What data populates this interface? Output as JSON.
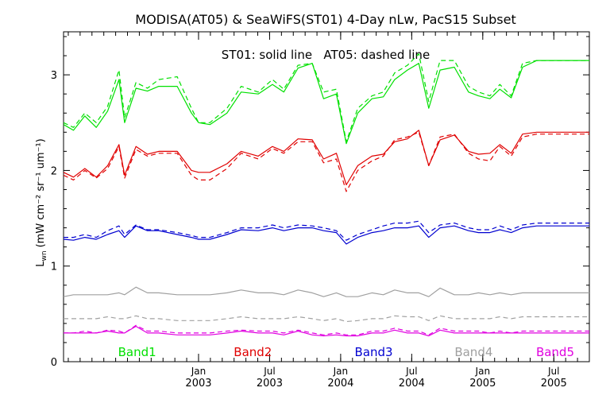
{
  "chart_data": {
    "type": "line",
    "title": "MODISA(AT05) & SeaWiFS(ST01) 4-Day nLw, PacS15 Subset",
    "annotation": "ST01: solid line   AT05: dashed line",
    "ylabel_main": "L",
    "ylabel_sub": "wn",
    "ylabel_units": "(mW cm⁻² sr⁻¹ um⁻¹)",
    "ylim": [
      0,
      3.45
    ],
    "yticks": [
      "0",
      "1",
      "2",
      "3"
    ],
    "xlim": [
      2002.05,
      2005.75
    ],
    "xticks": [
      {
        "x": 2003.0,
        "top": "Jan",
        "bottom": "2003"
      },
      {
        "x": 2003.5,
        "top": "Jul",
        "bottom": "2003"
      },
      {
        "x": 2004.0,
        "top": "Jan",
        "bottom": "2004"
      },
      {
        "x": 2004.5,
        "top": "Jul",
        "bottom": "2004"
      },
      {
        "x": 2005.0,
        "top": "Jan",
        "bottom": "2005"
      },
      {
        "x": 2005.5,
        "top": "Jul",
        "bottom": "2005"
      }
    ],
    "x": [
      2002.05,
      2002.12,
      2002.2,
      2002.28,
      2002.36,
      2002.44,
      2002.48,
      2002.56,
      2002.64,
      2002.72,
      2002.85,
      2002.95,
      2003.0,
      2003.08,
      2003.2,
      2003.3,
      2003.42,
      2003.52,
      2003.6,
      2003.7,
      2003.8,
      2003.88,
      2003.97,
      2004.04,
      2004.12,
      2004.22,
      2004.3,
      2004.38,
      2004.47,
      2004.55,
      2004.62,
      2004.7,
      2004.8,
      2004.9,
      2004.97,
      2005.05,
      2005.12,
      2005.2,
      2005.28,
      2005.38,
      2005.47,
      2005.55,
      2005.63,
      2005.72,
      2005.75
    ],
    "band_labels": [
      {
        "name": "Band1",
        "color": "#00e000"
      },
      {
        "name": "Band2",
        "color": "#e00000"
      },
      {
        "name": "Band3",
        "color": "#0000d0"
      },
      {
        "name": "Band4",
        "color": "#a0a0a0"
      },
      {
        "name": "Band5",
        "color": "#e000e0"
      }
    ],
    "series": [
      {
        "band": 1,
        "sensor": "ST01",
        "style": "solid",
        "color": "#00e000",
        "values": [
          2.48,
          2.42,
          2.57,
          2.45,
          2.62,
          2.95,
          2.5,
          2.86,
          2.83,
          2.88,
          2.88,
          2.6,
          2.5,
          2.48,
          2.6,
          2.82,
          2.8,
          2.9,
          2.82,
          3.07,
          3.12,
          2.75,
          2.8,
          2.28,
          2.6,
          2.75,
          2.77,
          2.95,
          3.05,
          3.12,
          2.65,
          3.05,
          3.08,
          2.82,
          2.78,
          2.75,
          2.85,
          2.76,
          3.08,
          3.15,
          3.15,
          3.15,
          3.15,
          3.15,
          3.15
        ]
      },
      {
        "band": 1,
        "sensor": "AT05",
        "style": "dashed",
        "color": "#00e000",
        "values": [
          2.5,
          2.45,
          2.6,
          2.5,
          2.67,
          3.05,
          2.55,
          2.92,
          2.86,
          2.95,
          2.98,
          2.65,
          2.5,
          2.5,
          2.65,
          2.88,
          2.82,
          2.95,
          2.85,
          3.1,
          3.12,
          2.82,
          2.85,
          2.3,
          2.65,
          2.78,
          2.82,
          3.02,
          3.1,
          3.22,
          2.72,
          3.15,
          3.15,
          2.88,
          2.82,
          2.78,
          2.9,
          2.78,
          3.12,
          3.15,
          3.15,
          3.15,
          3.15,
          3.15,
          3.15
        ]
      },
      {
        "band": 2,
        "sensor": "ST01",
        "style": "solid",
        "color": "#e00000",
        "values": [
          1.98,
          1.93,
          2.02,
          1.93,
          2.05,
          2.27,
          1.95,
          2.25,
          2.17,
          2.2,
          2.2,
          2.0,
          1.98,
          1.98,
          2.07,
          2.2,
          2.15,
          2.25,
          2.2,
          2.33,
          2.32,
          2.12,
          2.18,
          1.85,
          2.05,
          2.15,
          2.17,
          2.3,
          2.33,
          2.42,
          2.05,
          2.32,
          2.37,
          2.2,
          2.17,
          2.18,
          2.27,
          2.18,
          2.38,
          2.4,
          2.4,
          2.4,
          2.4,
          2.4,
          2.4
        ]
      },
      {
        "band": 2,
        "sensor": "AT05",
        "style": "dashed",
        "color": "#e00000",
        "values": [
          1.95,
          1.9,
          2.0,
          1.92,
          2.02,
          2.25,
          1.92,
          2.22,
          2.15,
          2.18,
          2.18,
          1.95,
          1.9,
          1.9,
          2.02,
          2.18,
          2.12,
          2.23,
          2.18,
          2.3,
          2.3,
          2.08,
          2.12,
          1.78,
          2.0,
          2.1,
          2.15,
          2.32,
          2.35,
          2.4,
          2.05,
          2.35,
          2.38,
          2.18,
          2.12,
          2.1,
          2.25,
          2.15,
          2.35,
          2.38,
          2.38,
          2.38,
          2.38,
          2.38,
          2.38
        ]
      },
      {
        "band": 3,
        "sensor": "ST01",
        "style": "solid",
        "color": "#0000d0",
        "values": [
          1.28,
          1.27,
          1.3,
          1.28,
          1.33,
          1.37,
          1.3,
          1.42,
          1.37,
          1.37,
          1.33,
          1.3,
          1.28,
          1.28,
          1.33,
          1.38,
          1.37,
          1.4,
          1.37,
          1.4,
          1.4,
          1.37,
          1.35,
          1.23,
          1.3,
          1.35,
          1.37,
          1.4,
          1.4,
          1.42,
          1.3,
          1.4,
          1.42,
          1.37,
          1.35,
          1.35,
          1.38,
          1.35,
          1.4,
          1.42,
          1.42,
          1.42,
          1.42,
          1.42,
          1.42
        ]
      },
      {
        "band": 3,
        "sensor": "AT05",
        "style": "dashed",
        "color": "#0000d0",
        "values": [
          1.3,
          1.3,
          1.33,
          1.3,
          1.37,
          1.42,
          1.33,
          1.43,
          1.38,
          1.38,
          1.35,
          1.32,
          1.3,
          1.3,
          1.35,
          1.4,
          1.4,
          1.43,
          1.4,
          1.43,
          1.42,
          1.4,
          1.37,
          1.27,
          1.33,
          1.38,
          1.42,
          1.45,
          1.45,
          1.47,
          1.35,
          1.43,
          1.45,
          1.4,
          1.38,
          1.38,
          1.42,
          1.38,
          1.43,
          1.45,
          1.45,
          1.45,
          1.45,
          1.45,
          1.45
        ]
      },
      {
        "band": 4,
        "sensor": "ST01",
        "style": "solid",
        "color": "#a0a0a0",
        "values": [
          0.68,
          0.7,
          0.7,
          0.7,
          0.7,
          0.72,
          0.7,
          0.78,
          0.72,
          0.72,
          0.7,
          0.7,
          0.7,
          0.7,
          0.72,
          0.75,
          0.72,
          0.72,
          0.7,
          0.75,
          0.72,
          0.68,
          0.72,
          0.68,
          0.68,
          0.72,
          0.7,
          0.75,
          0.72,
          0.72,
          0.68,
          0.77,
          0.7,
          0.7,
          0.72,
          0.7,
          0.72,
          0.7,
          0.72,
          0.72,
          0.72,
          0.72,
          0.72,
          0.72,
          0.72
        ]
      },
      {
        "band": 4,
        "sensor": "AT05",
        "style": "dashed",
        "color": "#a0a0a0",
        "values": [
          0.45,
          0.45,
          0.45,
          0.45,
          0.47,
          0.45,
          0.45,
          0.48,
          0.45,
          0.45,
          0.43,
          0.43,
          0.43,
          0.43,
          0.45,
          0.47,
          0.45,
          0.45,
          0.45,
          0.47,
          0.45,
          0.43,
          0.45,
          0.42,
          0.43,
          0.45,
          0.45,
          0.48,
          0.47,
          0.47,
          0.43,
          0.48,
          0.45,
          0.45,
          0.45,
          0.45,
          0.47,
          0.45,
          0.47,
          0.47,
          0.47,
          0.47,
          0.47,
          0.47,
          0.47
        ]
      },
      {
        "band": 5,
        "sensor": "ST01",
        "style": "solid",
        "color": "#e000e0",
        "values": [
          0.3,
          0.3,
          0.3,
          0.3,
          0.32,
          0.3,
          0.3,
          0.37,
          0.3,
          0.3,
          0.28,
          0.28,
          0.28,
          0.28,
          0.3,
          0.32,
          0.3,
          0.3,
          0.28,
          0.32,
          0.28,
          0.27,
          0.28,
          0.27,
          0.27,
          0.3,
          0.3,
          0.33,
          0.3,
          0.3,
          0.27,
          0.33,
          0.3,
          0.3,
          0.3,
          0.3,
          0.3,
          0.3,
          0.3,
          0.3,
          0.3,
          0.3,
          0.3,
          0.3,
          0.3
        ]
      },
      {
        "band": 5,
        "sensor": "AT05",
        "style": "dashed",
        "color": "#e000e0",
        "values": [
          0.3,
          0.3,
          0.32,
          0.3,
          0.33,
          0.32,
          0.3,
          0.38,
          0.32,
          0.32,
          0.3,
          0.3,
          0.3,
          0.3,
          0.32,
          0.33,
          0.32,
          0.32,
          0.3,
          0.33,
          0.3,
          0.28,
          0.3,
          0.28,
          0.28,
          0.32,
          0.32,
          0.35,
          0.32,
          0.32,
          0.28,
          0.35,
          0.32,
          0.32,
          0.32,
          0.3,
          0.32,
          0.3,
          0.32,
          0.32,
          0.32,
          0.32,
          0.32,
          0.32,
          0.32
        ]
      }
    ],
    "grid": false,
    "legend": "bottom"
  }
}
